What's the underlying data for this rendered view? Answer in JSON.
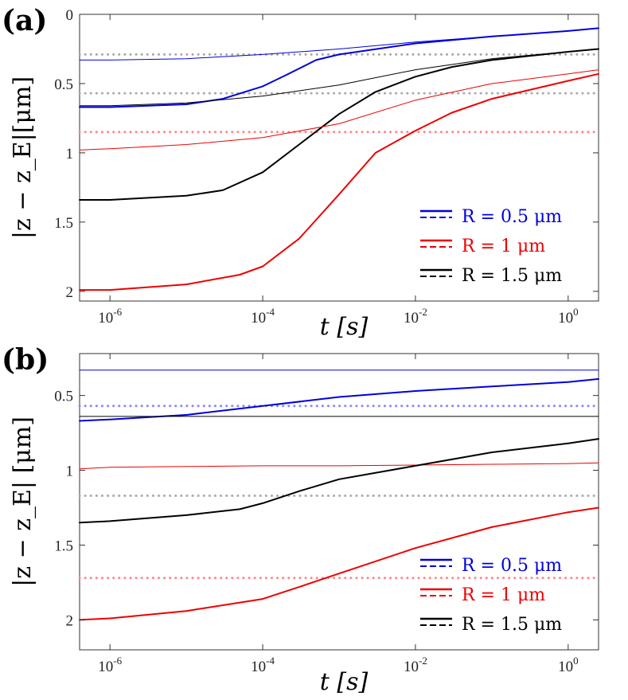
{
  "figure": {
    "panels": [
      {
        "id": "a",
        "label": "(a)",
        "xlabel": "t [s]",
        "ylabel": "|z − z_E|[μm]",
        "xticks": [
          "10-6",
          "10-4",
          "10-2",
          "100"
        ],
        "yticks": [
          "0",
          "0.5",
          "1",
          "1.5",
          "2"
        ],
        "legend": [
          {
            "text": "R = 0.5 μm",
            "color": "#0000dd"
          },
          {
            "text": "R = 1 μm",
            "color": "#ee0000"
          },
          {
            "text": "R = 1.5 μm",
            "color": "#000000"
          }
        ]
      },
      {
        "id": "b",
        "label": "(b)",
        "xlabel": "t [s]",
        "ylabel": "|z − z_E| [μm]",
        "xticks": [
          "10-6",
          "10-4",
          "10-2",
          "100"
        ],
        "yticks": [
          "0.5",
          "1",
          "1.5",
          "2"
        ],
        "legend": [
          {
            "text": "R = 0.5 μm",
            "color": "#0000dd"
          },
          {
            "text": "R = 1 μm",
            "color": "#ee0000"
          },
          {
            "text": "R = 1.5 μm",
            "color": "#000000"
          }
        ]
      }
    ]
  },
  "chart_data": [
    {
      "type": "line",
      "panel": "a",
      "xscale": "log",
      "yaxis_inverted": true,
      "xlim": [
        4e-07,
        2.5
      ],
      "ylim": [
        0,
        2.07
      ],
      "xlabel": "t [s]",
      "ylabel": "|z − z_E|[μm]",
      "legend_position": "bottom-right",
      "series": [
        {
          "color": "#0000dd",
          "style": "solid",
          "width": "thick",
          "x": [
            4e-07,
            1e-06,
            1e-05,
            3e-05,
            0.0001,
            0.0002,
            0.0005,
            0.001,
            0.01,
            0.1,
            1,
            2.5
          ],
          "y": [
            0.67,
            0.67,
            0.65,
            0.61,
            0.52,
            0.44,
            0.33,
            0.29,
            0.21,
            0.16,
            0.12,
            0.1
          ]
        },
        {
          "color": "#0000dd",
          "style": "solid",
          "width": "thin",
          "x": [
            4e-07,
            1e-06,
            1e-05,
            0.0001,
            0.001,
            0.01,
            0.1,
            1,
            2.5
          ],
          "y": [
            0.33,
            0.33,
            0.32,
            0.29,
            0.25,
            0.2,
            0.16,
            0.12,
            0.1
          ]
        },
        {
          "color": "#aaaaaa",
          "style": "dotted",
          "x": [
            4e-07,
            2.5
          ],
          "y": [
            0.29,
            0.29
          ]
        },
        {
          "color": "#aaaaaa",
          "style": "dotted",
          "x": [
            4e-07,
            2.5
          ],
          "y": [
            0.57,
            0.57
          ]
        },
        {
          "color": "#000000",
          "style": "solid",
          "width": "thick",
          "x": [
            4e-07,
            1e-06,
            1e-05,
            3e-05,
            0.0001,
            0.0003,
            0.001,
            0.003,
            0.01,
            0.03,
            0.1,
            1,
            2.5
          ],
          "y": [
            1.34,
            1.34,
            1.31,
            1.27,
            1.14,
            0.94,
            0.72,
            0.56,
            0.45,
            0.38,
            0.33,
            0.27,
            0.25
          ]
        },
        {
          "color": "#000000",
          "style": "solid",
          "width": "thin",
          "x": [
            4e-07,
            1e-06,
            1e-05,
            0.0001,
            0.001,
            0.01,
            0.1,
            1,
            2.5
          ],
          "y": [
            0.66,
            0.66,
            0.64,
            0.59,
            0.51,
            0.4,
            0.32,
            0.27,
            0.25
          ]
        },
        {
          "color": "#ee0000",
          "style": "solid",
          "width": "thick",
          "x": [
            4e-07,
            1e-06,
            1e-05,
            5e-05,
            0.0001,
            0.0003,
            0.001,
            0.003,
            0.01,
            0.03,
            0.1,
            1,
            2.5
          ],
          "y": [
            1.99,
            1.99,
            1.95,
            1.88,
            1.82,
            1.62,
            1.3,
            1.0,
            0.84,
            0.71,
            0.61,
            0.48,
            0.43
          ]
        },
        {
          "color": "#ee0000",
          "style": "solid",
          "width": "thin",
          "x": [
            4e-07,
            1e-06,
            1e-05,
            0.0001,
            0.001,
            0.01,
            0.1,
            1,
            2.5
          ],
          "y": [
            0.98,
            0.97,
            0.94,
            0.89,
            0.79,
            0.62,
            0.5,
            0.43,
            0.4
          ]
        },
        {
          "color": "#ff8888",
          "style": "dotted",
          "x": [
            4e-07,
            2.5
          ],
          "y": [
            0.85,
            0.85
          ]
        }
      ]
    },
    {
      "type": "line",
      "panel": "b",
      "xscale": "log",
      "yaxis_inverted": true,
      "xlim": [
        4e-07,
        2.5
      ],
      "ylim": [
        0.22,
        2.2
      ],
      "xlabel": "t [s]",
      "ylabel": "|z − z_E| [μm]",
      "legend_position": "bottom-right",
      "series": [
        {
          "color": "#0000dd",
          "style": "solid",
          "width": "thin",
          "x": [
            4e-07,
            2.5
          ],
          "y": [
            0.33,
            0.33
          ]
        },
        {
          "color": "#0000dd",
          "style": "solid",
          "width": "thick",
          "x": [
            4e-07,
            1e-06,
            1e-05,
            0.0001,
            0.001,
            0.01,
            0.1,
            1,
            2.5
          ],
          "y": [
            0.67,
            0.66,
            0.63,
            0.57,
            0.51,
            0.47,
            0.44,
            0.41,
            0.39
          ]
        },
        {
          "color": "#8888ff",
          "style": "dotted",
          "x": [
            4e-07,
            2.5
          ],
          "y": [
            0.57,
            0.57
          ]
        },
        {
          "color": "#000000",
          "style": "solid",
          "width": "thin",
          "x": [
            4e-07,
            2.5
          ],
          "y": [
            0.64,
            0.64
          ]
        },
        {
          "color": "#ee0000",
          "style": "solid",
          "width": "thin",
          "x": [
            4e-07,
            1e-06,
            1e-05,
            0.0001,
            0.001,
            0.01,
            0.1,
            1,
            2.5
          ],
          "y": [
            0.99,
            0.98,
            0.975,
            0.97,
            0.97,
            0.965,
            0.96,
            0.955,
            0.95
          ]
        },
        {
          "color": "#aaaaaa",
          "style": "dotted",
          "x": [
            4e-07,
            2.5
          ],
          "y": [
            1.17,
            1.17
          ]
        },
        {
          "color": "#000000",
          "style": "solid",
          "width": "thick",
          "x": [
            4e-07,
            1e-06,
            1e-05,
            5e-05,
            0.0001,
            0.0003,
            0.001,
            0.01,
            0.1,
            1,
            2.5
          ],
          "y": [
            1.35,
            1.34,
            1.3,
            1.26,
            1.22,
            1.14,
            1.06,
            0.97,
            0.88,
            0.82,
            0.79
          ]
        },
        {
          "color": "#ee0000",
          "style": "solid",
          "width": "thick",
          "x": [
            4e-07,
            1e-06,
            1e-05,
            0.0001,
            0.0003,
            0.001,
            0.01,
            0.1,
            1,
            2.5
          ],
          "y": [
            2.0,
            1.99,
            1.94,
            1.86,
            1.78,
            1.69,
            1.52,
            1.38,
            1.28,
            1.25
          ]
        },
        {
          "color": "#ff8888",
          "style": "dotted",
          "x": [
            4e-07,
            2.5
          ],
          "y": [
            1.72,
            1.72
          ]
        }
      ]
    }
  ]
}
